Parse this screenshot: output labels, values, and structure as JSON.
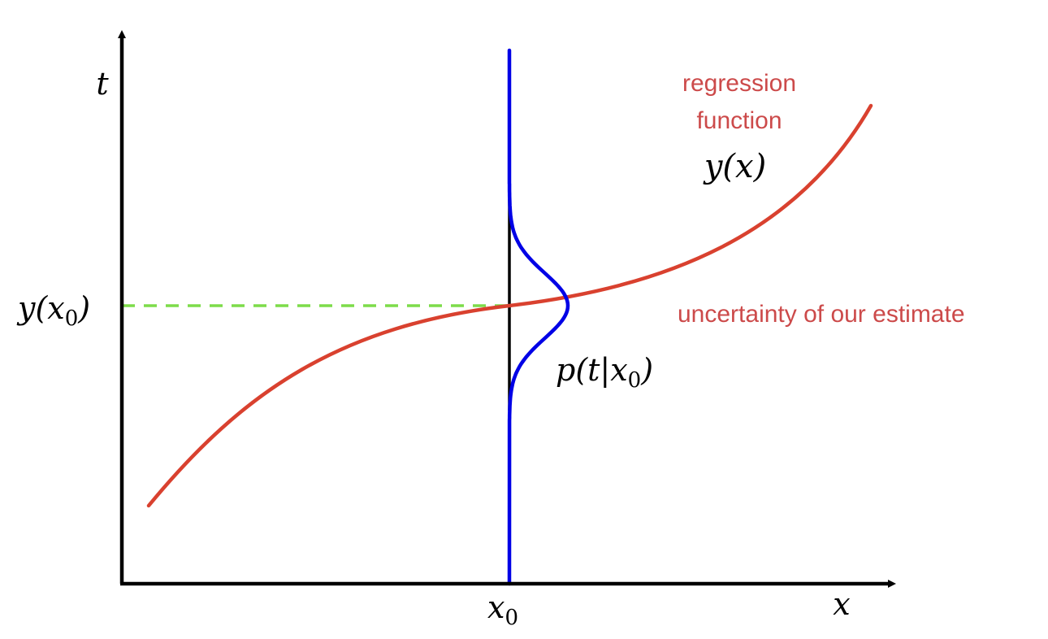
{
  "axes": {
    "x_label": "x",
    "y_label": "t",
    "x_tick_label": {
      "base": "x",
      "sub": "0"
    },
    "y_tick_label": {
      "pre": "y(",
      "var": "x",
      "sub": "0",
      "post": ")"
    }
  },
  "curves": {
    "regression_label_line1": "regression",
    "regression_label_line2": "function",
    "regression_symbol": "y(x)",
    "distribution_label": {
      "pre": "p(t|",
      "var": "x",
      "sub": "0",
      "post": ")"
    }
  },
  "annotation": {
    "uncertainty": "uncertainty of our estimate"
  },
  "colors": {
    "regression": "#d9412f",
    "distribution": "#0000e6",
    "dashed_guide": "#7ddc4a",
    "annotation_text": "#cc4a4a",
    "axes": "#000000"
  }
}
